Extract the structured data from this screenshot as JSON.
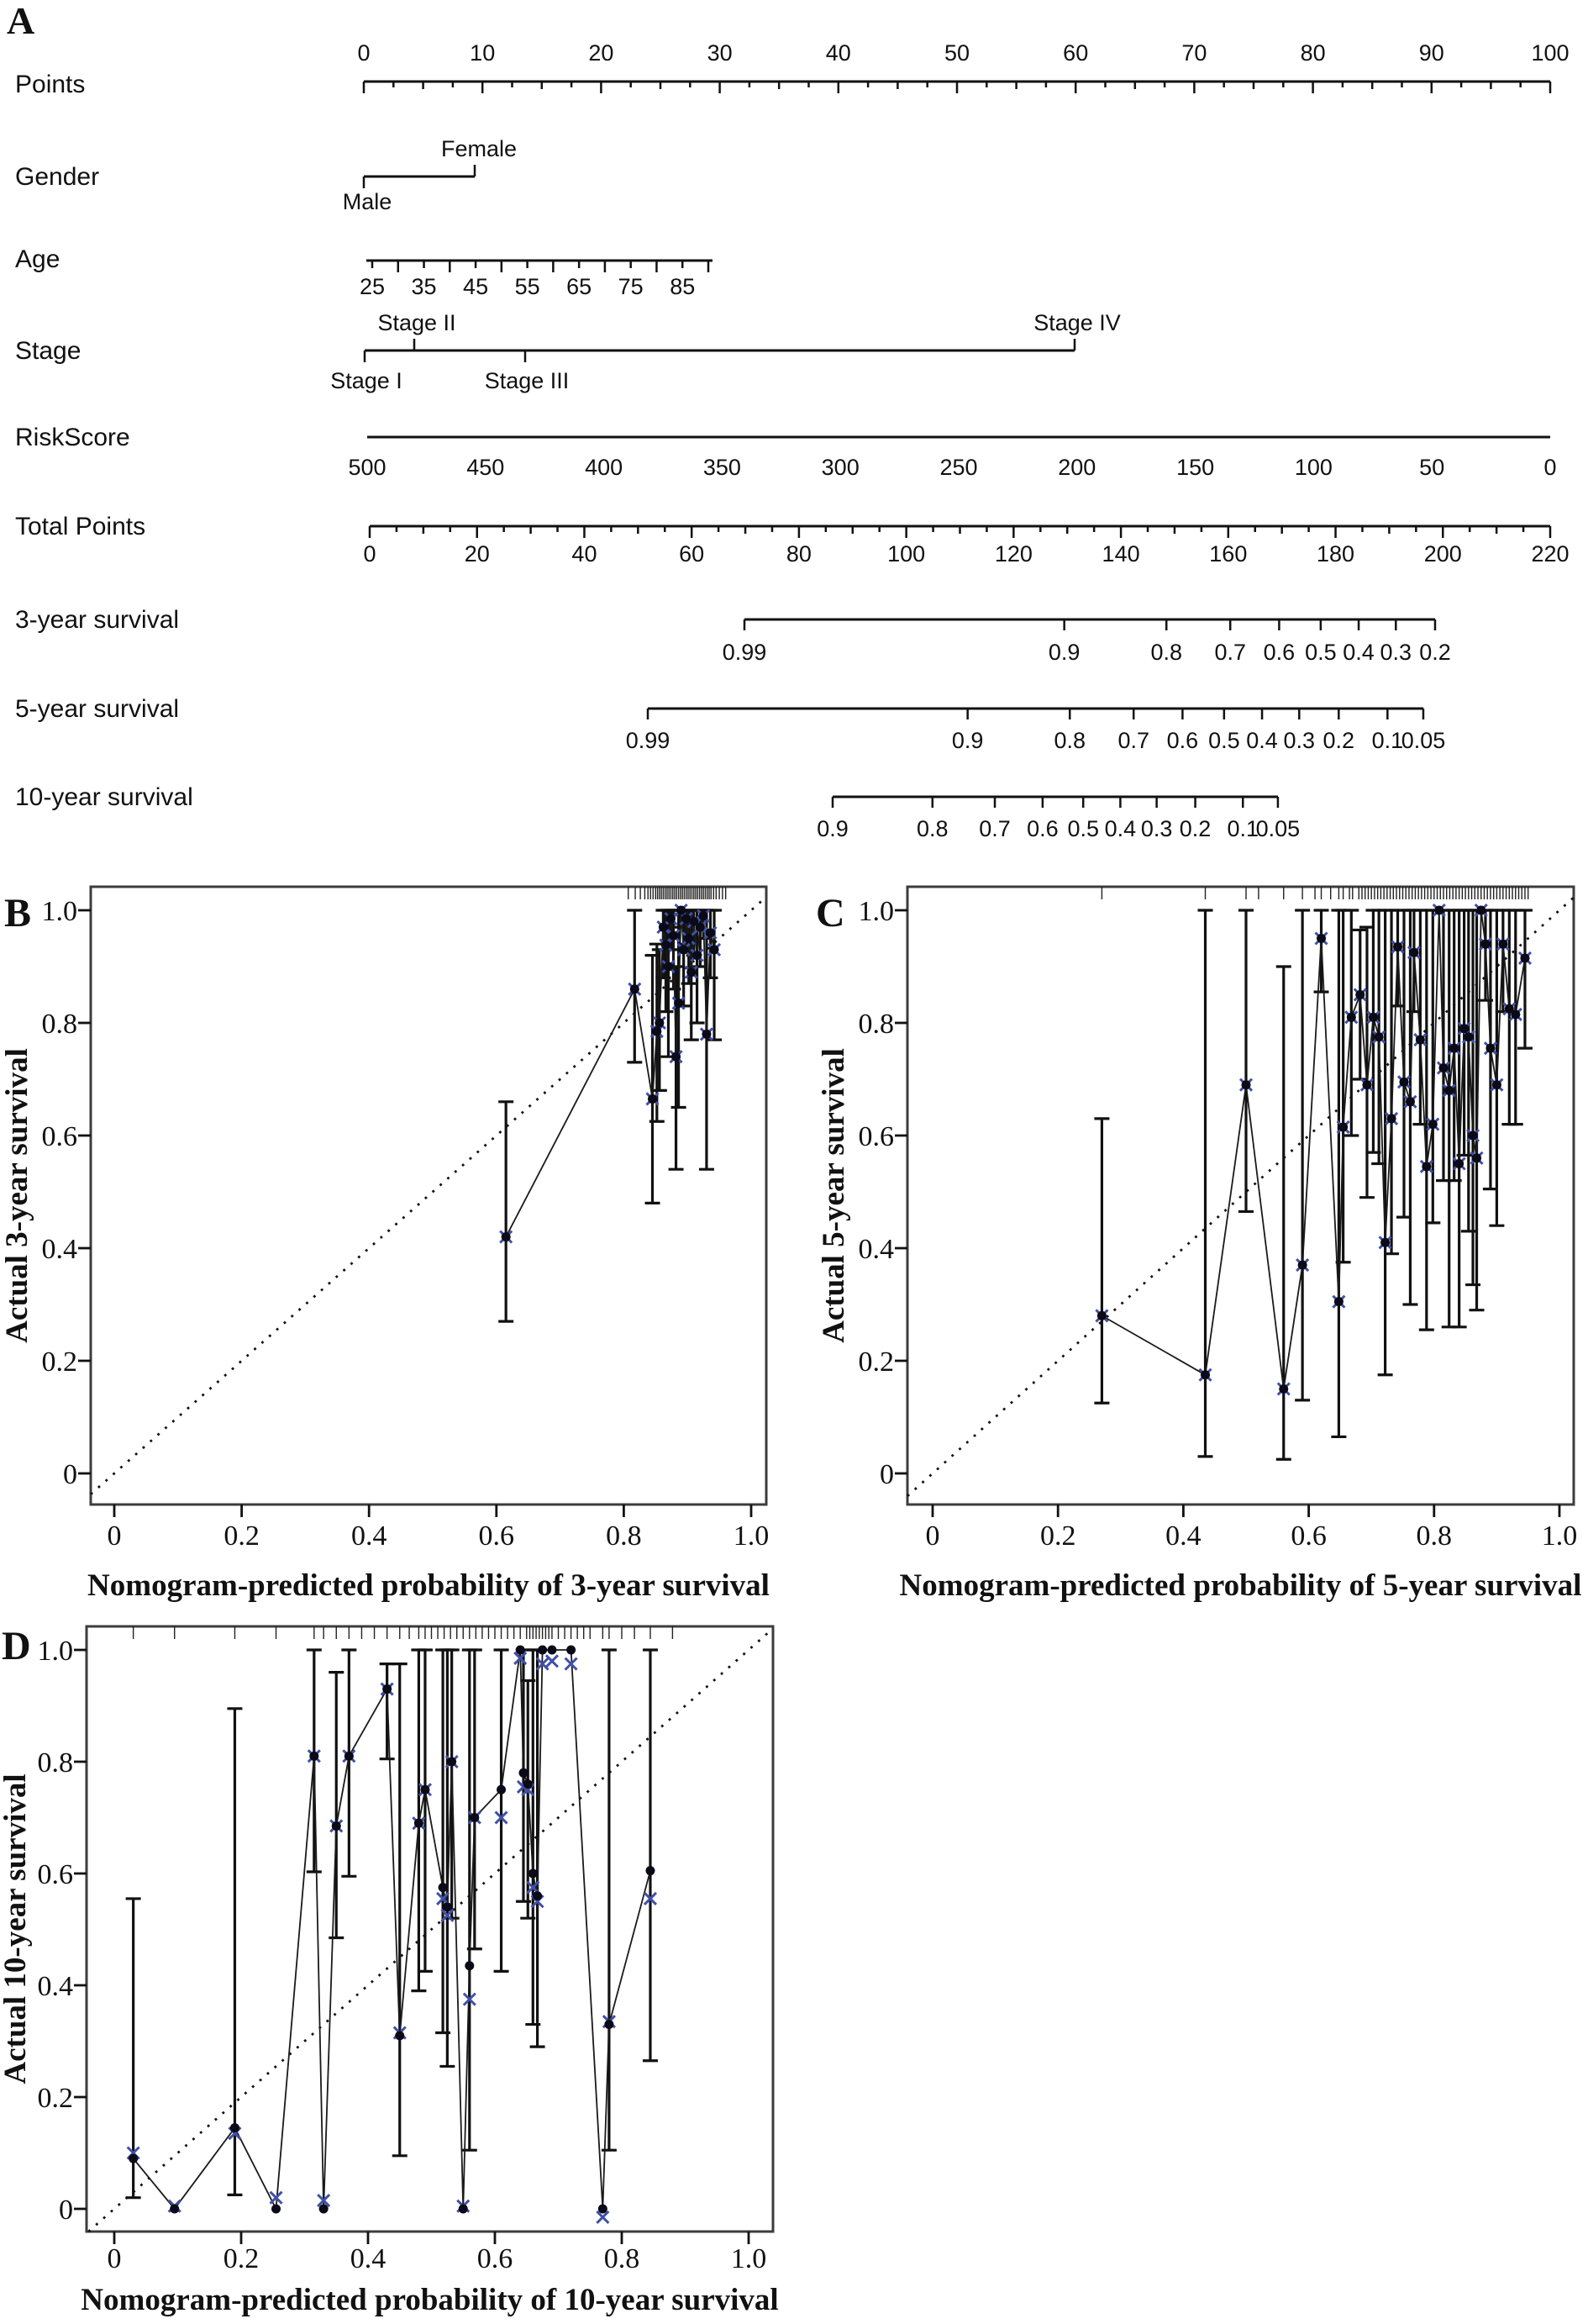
{
  "figure_colors": {
    "ink": "#111111",
    "axis_gray": "#3c3c3c",
    "dot": "#0a0a18",
    "bias_marker_blue": "#4050a8",
    "background": "#ffffff"
  },
  "chart_data": [
    {
      "type": "nomogram",
      "panel_letter": "A",
      "rows": [
        {
          "id": "points",
          "label": "Points",
          "kind": "linear",
          "tick_labels": [
            "0",
            "10",
            "20",
            "30",
            "40",
            "50",
            "60",
            "70",
            "80",
            "90",
            "100"
          ],
          "tick_values": [
            0,
            10,
            20,
            30,
            40,
            50,
            60,
            70,
            80,
            90,
            100
          ],
          "range": [
            0,
            100
          ]
        },
        {
          "id": "gender",
          "label": "Gender",
          "kind": "binary",
          "low_label": "Male",
          "high_label": "Female"
        },
        {
          "id": "age",
          "label": "Age",
          "kind": "linear",
          "tick_labels": [
            "25",
            "35",
            "45",
            "55",
            "65",
            "75",
            "85"
          ],
          "tick_values": [
            25,
            35,
            45,
            55,
            65,
            75,
            85
          ],
          "range": [
            25,
            90
          ]
        },
        {
          "id": "stage",
          "label": "Stage",
          "kind": "category4",
          "above": [
            {
              "label": "Stage II",
              "value": "II"
            },
            {
              "label": "Stage IV",
              "value": "IV"
            }
          ],
          "below": [
            {
              "label": "Stage I",
              "value": "I"
            },
            {
              "label": "Stage III",
              "value": "III"
            }
          ]
        },
        {
          "id": "riskscore",
          "label": "RiskScore",
          "kind": "linear",
          "tick_labels": [
            "500",
            "450",
            "400",
            "350",
            "300",
            "250",
            "200",
            "150",
            "100",
            "50",
            "0"
          ],
          "tick_values": [
            500,
            450,
            400,
            350,
            300,
            250,
            200,
            150,
            100,
            50,
            0
          ],
          "range": [
            500,
            0
          ]
        },
        {
          "id": "total_points",
          "label": "Total Points",
          "kind": "linear",
          "tick_labels": [
            "0",
            "20",
            "40",
            "60",
            "80",
            "100",
            "120",
            "140",
            "160",
            "180",
            "200",
            "220"
          ],
          "tick_values": [
            0,
            20,
            40,
            60,
            80,
            100,
            120,
            140,
            160,
            180,
            200,
            220
          ],
          "range": [
            0,
            220
          ]
        },
        {
          "id": "survival3",
          "label": "3-year survival",
          "kind": "survival",
          "tick_labels": [
            "0.99",
            "0.9",
            "0.8",
            "0.7",
            "0.6",
            "0.5",
            "0.4",
            "0.3",
            "0.2"
          ],
          "tick_values": [
            0.99,
            0.9,
            0.8,
            0.7,
            0.6,
            0.5,
            0.4,
            0.3,
            0.2
          ]
        },
        {
          "id": "survival5",
          "label": "5-year survival",
          "kind": "survival",
          "tick_labels": [
            "0.99",
            "0.9",
            "0.8",
            "0.7",
            "0.6",
            "0.5",
            "0.4",
            "0.3",
            "0.2",
            "0.1",
            "0.05"
          ],
          "tick_values": [
            0.99,
            0.9,
            0.8,
            0.7,
            0.6,
            0.5,
            0.4,
            0.3,
            0.2,
            0.1,
            0.05
          ]
        },
        {
          "id": "survival10",
          "label": "10-year survival",
          "kind": "survival",
          "tick_labels": [
            "0.9",
            "0.8",
            "0.7",
            "0.6",
            "0.5",
            "0.4",
            "0.3",
            "0.2",
            "0.1",
            "0.05"
          ],
          "tick_values": [
            0.9,
            0.8,
            0.7,
            0.6,
            0.5,
            0.4,
            0.3,
            0.2,
            0.1,
            0.05
          ]
        }
      ]
    },
    {
      "type": "scatter",
      "panel_letter": "B",
      "xlabel": "Nomogram-predicted probability of 3-year survival",
      "ylabel": "Actual 3-year survival",
      "xlim": [
        -0.04,
        1.05
      ],
      "ylim": [
        -0.05,
        1.05
      ],
      "xtick_labels": [
        "0",
        "0.2",
        "0.4",
        "0.6",
        "0.8",
        "1.0"
      ],
      "ytick_labels": [
        "0",
        "0.2",
        "0.4",
        "0.6",
        "0.8",
        "1.0"
      ],
      "tick_values": [
        0,
        0.2,
        0.4,
        0.6,
        0.8,
        1.0
      ],
      "columns": [
        "predicted",
        "observed",
        "ci_low",
        "ci_high",
        "bias_corrected"
      ],
      "points": [
        [
          0.615,
          0.42,
          0.27,
          0.66
        ],
        [
          0.817,
          0.86,
          0.73,
          1.0
        ],
        [
          0.845,
          0.665,
          0.48,
          0.92
        ],
        [
          0.852,
          0.785,
          0.625,
          0.94
        ],
        [
          0.856,
          0.8,
          0.68,
          0.93
        ],
        [
          0.862,
          0.97,
          0.88,
          1.0
        ],
        [
          0.866,
          0.938,
          0.82,
          1.0
        ],
        [
          0.87,
          0.9,
          0.74,
          1.0
        ],
        [
          0.874,
          0.985,
          0.93,
          1.0
        ],
        [
          0.878,
          0.955,
          0.86,
          1.0
        ],
        [
          0.882,
          0.74,
          0.54,
          0.9
        ],
        [
          0.886,
          0.835,
          0.65,
          1.0
        ],
        [
          0.89,
          1.0,
          0.97,
          1.0
        ],
        [
          0.894,
          0.93,
          0.83,
          1.0
        ],
        [
          0.898,
          0.985,
          0.94,
          1.0
        ],
        [
          0.902,
          0.95,
          0.87,
          1.0
        ],
        [
          0.906,
          0.89,
          0.77,
          1.0
        ],
        [
          0.91,
          0.98,
          0.92,
          1.0
        ],
        [
          0.915,
          0.92,
          0.8,
          1.0
        ],
        [
          0.92,
          0.97,
          0.9,
          1.0
        ],
        [
          0.925,
          0.99,
          0.95,
          1.0
        ],
        [
          0.93,
          0.78,
          0.54,
          1.0
        ],
        [
          0.936,
          0.96,
          0.88,
          1.0
        ],
        [
          0.942,
          0.93,
          0.77,
          1.0
        ]
      ],
      "rug": [
        0.807,
        0.818,
        0.826,
        0.833,
        0.838,
        0.842,
        0.846,
        0.85,
        0.853,
        0.856,
        0.859,
        0.862,
        0.865,
        0.868,
        0.871,
        0.874,
        0.877,
        0.88,
        0.883,
        0.886,
        0.889,
        0.892,
        0.895,
        0.898,
        0.901,
        0.904,
        0.907,
        0.91,
        0.913,
        0.916,
        0.919,
        0.922,
        0.925,
        0.928,
        0.931,
        0.934,
        0.937,
        0.941,
        0.945,
        0.95,
        0.955,
        0.96
      ]
    },
    {
      "type": "scatter",
      "panel_letter": "C",
      "xlabel": "Nomogram-predicted probability of 5-year survival",
      "ylabel": "Actual 5-year survival",
      "xlim": [
        -0.04,
        1.05
      ],
      "ylim": [
        -0.05,
        1.05
      ],
      "xtick_labels": [
        "0",
        "0.2",
        "0.4",
        "0.6",
        "0.8",
        "1.0"
      ],
      "ytick_labels": [
        "0",
        "0.2",
        "0.4",
        "0.6",
        "0.8",
        "1.0"
      ],
      "tick_values": [
        0,
        0.2,
        0.4,
        0.6,
        0.8,
        1.0
      ],
      "columns": [
        "predicted",
        "observed",
        "ci_low",
        "ci_high",
        "bias_corrected"
      ],
      "points": [
        [
          0.27,
          0.28,
          0.125,
          0.63
        ],
        [
          0.435,
          0.175,
          0.03,
          1.0
        ],
        [
          0.5,
          0.69,
          0.465,
          1.0
        ],
        [
          0.56,
          0.15,
          0.025,
          0.9
        ],
        [
          0.59,
          0.37,
          0.13,
          1.0
        ],
        [
          0.62,
          0.95,
          0.855,
          1.0
        ],
        [
          0.648,
          0.305,
          0.065,
          1.0
        ],
        [
          0.655,
          0.615,
          0.375,
          1.0
        ],
        [
          0.668,
          0.81,
          0.6,
          1.0
        ],
        [
          0.682,
          0.85,
          0.7,
          0.965
        ],
        [
          0.693,
          0.69,
          0.49,
          0.97
        ],
        [
          0.703,
          0.81,
          0.57,
          1.0
        ],
        [
          0.712,
          0.775,
          0.55,
          1.0
        ],
        [
          0.722,
          0.41,
          0.175,
          1.0
        ],
        [
          0.732,
          0.63,
          0.39,
          1.0
        ],
        [
          0.742,
          0.935,
          0.83,
          1.0
        ],
        [
          0.752,
          0.695,
          0.455,
          1.0
        ],
        [
          0.762,
          0.66,
          0.3,
          1.0
        ],
        [
          0.768,
          0.925,
          0.82,
          1.0
        ],
        [
          0.778,
          0.77,
          0.62,
          1.0
        ],
        [
          0.788,
          0.545,
          0.255,
          1.0
        ],
        [
          0.798,
          0.62,
          0.445,
          1.0
        ],
        [
          0.808,
          1.0,
          1.0,
          1.0
        ],
        [
          0.815,
          0.72,
          0.52,
          1.0
        ],
        [
          0.824,
          0.68,
          0.26,
          1.0
        ],
        [
          0.832,
          0.755,
          0.52,
          1.0
        ],
        [
          0.84,
          0.55,
          0.26,
          1.0
        ],
        [
          0.848,
          0.79,
          0.565,
          1.0
        ],
        [
          0.855,
          0.775,
          0.43,
          1.0
        ],
        [
          0.862,
          0.6,
          0.335,
          1.0
        ],
        [
          0.868,
          0.56,
          0.29,
          1.0
        ],
        [
          0.875,
          1.0,
          1.0,
          1.0
        ],
        [
          0.882,
          0.94,
          0.84,
          1.0
        ],
        [
          0.89,
          0.755,
          0.505,
          1.0
        ],
        [
          0.9,
          0.69,
          0.44,
          1.0
        ],
        [
          0.91,
          0.94,
          0.82,
          1.0
        ],
        [
          0.92,
          0.825,
          0.62,
          1.0
        ],
        [
          0.93,
          0.815,
          0.62,
          1.0
        ],
        [
          0.945,
          0.915,
          0.755,
          1.0
        ]
      ],
      "rug": [
        0.27,
        0.435,
        0.5,
        0.52,
        0.56,
        0.59,
        0.61,
        0.62,
        0.635,
        0.648,
        0.655,
        0.665,
        0.67,
        0.68,
        0.685,
        0.69,
        0.695,
        0.7,
        0.705,
        0.71,
        0.715,
        0.72,
        0.725,
        0.73,
        0.735,
        0.74,
        0.745,
        0.75,
        0.755,
        0.76,
        0.765,
        0.77,
        0.775,
        0.78,
        0.785,
        0.79,
        0.795,
        0.8,
        0.805,
        0.81,
        0.815,
        0.82,
        0.825,
        0.83,
        0.835,
        0.84,
        0.845,
        0.85,
        0.855,
        0.86,
        0.865,
        0.87,
        0.875,
        0.88,
        0.885,
        0.89,
        0.895,
        0.9,
        0.905,
        0.91,
        0.915,
        0.92,
        0.925,
        0.93,
        0.935,
        0.94,
        0.945,
        0.95
      ]
    },
    {
      "type": "scatter",
      "panel_letter": "D",
      "xlabel": "Nomogram-predicted probability of 10-year survival",
      "ylabel": "Actual 10-year survival",
      "xlim": [
        -0.04,
        1.05
      ],
      "ylim": [
        -0.05,
        1.05
      ],
      "xtick_labels": [
        "0",
        "0.2",
        "0.4",
        "0.6",
        "0.8",
        "1.0"
      ],
      "ytick_labels": [
        "0",
        "0.2",
        "0.4",
        "0.6",
        "0.8",
        "1.0"
      ],
      "tick_values": [
        0,
        0.2,
        0.4,
        0.6,
        0.8,
        1.0
      ],
      "columns": [
        "predicted",
        "observed",
        "ci_low",
        "ci_high",
        "bias_corrected"
      ],
      "points": [
        [
          0.03,
          0.09,
          0.02,
          0.555,
          0.1
        ],
        [
          0.095,
          0.0,
          0.0,
          0.0,
          0.005
        ],
        [
          0.19,
          0.145,
          0.025,
          0.895,
          0.135
        ],
        [
          0.255,
          0.0,
          0.0,
          0.0,
          0.02
        ],
        [
          0.315,
          0.81,
          0.603,
          1.0
        ],
        [
          0.33,
          0.0,
          0.0,
          0.0,
          0.015
        ],
        [
          0.35,
          0.685,
          0.485,
          0.96
        ],
        [
          0.37,
          0.81,
          0.595,
          1.0
        ],
        [
          0.43,
          0.93,
          0.805,
          0.975
        ],
        [
          0.45,
          0.31,
          0.095,
          0.975,
          0.315
        ],
        [
          0.48,
          0.69,
          0.39,
          1.0
        ],
        [
          0.49,
          0.75,
          0.425,
          1.0
        ],
        [
          0.518,
          0.575,
          0.315,
          1.0,
          0.555
        ],
        [
          0.525,
          0.54,
          0.255,
          1.0,
          0.525
        ],
        [
          0.532,
          0.8,
          0.52,
          1.0
        ],
        [
          0.55,
          0.0,
          0.0,
          0.0,
          0.005
        ],
        [
          0.56,
          0.435,
          0.105,
          1.0,
          0.375
        ],
        [
          0.568,
          0.7,
          0.465,
          1.0
        ],
        [
          0.61,
          0.75,
          0.425,
          1.0,
          0.7
        ],
        [
          0.64,
          1.0,
          1.0,
          1.0,
          0.985
        ],
        [
          0.645,
          0.78,
          0.55,
          1.0,
          0.755
        ],
        [
          0.652,
          0.76,
          0.52,
          0.945,
          0.75
        ],
        [
          0.66,
          0.6,
          0.33,
          1.0,
          0.575
        ],
        [
          0.667,
          0.56,
          0.29,
          1.0,
          0.55
        ],
        [
          0.675,
          1.0,
          1.0,
          1.0,
          0.975
        ],
        [
          0.69,
          1.0,
          1.0,
          1.0,
          0.98
        ],
        [
          0.72,
          1.0,
          1.0,
          1.0,
          0.975
        ],
        [
          0.77,
          0.0,
          0.0,
          0.0,
          -0.015
        ],
        [
          0.78,
          0.33,
          0.105,
          1.0,
          0.335
        ],
        [
          0.845,
          0.605,
          0.265,
          1.0,
          0.555
        ]
      ],
      "rug": [
        0.03,
        0.095,
        0.19,
        0.255,
        0.315,
        0.33,
        0.35,
        0.37,
        0.39,
        0.41,
        0.43,
        0.45,
        0.465,
        0.48,
        0.49,
        0.5,
        0.51,
        0.52,
        0.53,
        0.54,
        0.55,
        0.56,
        0.57,
        0.58,
        0.59,
        0.6,
        0.61,
        0.62,
        0.63,
        0.64,
        0.65,
        0.655,
        0.66,
        0.665,
        0.67,
        0.675,
        0.68,
        0.685,
        0.69,
        0.7,
        0.71,
        0.72,
        0.73,
        0.74,
        0.75,
        0.77,
        0.78,
        0.8,
        0.82,
        0.845,
        0.88
      ]
    }
  ]
}
